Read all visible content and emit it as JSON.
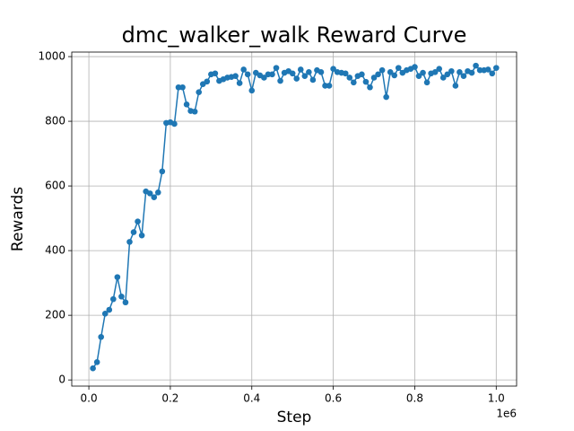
{
  "chart_data": {
    "type": "line",
    "title": "dmc_walker_walk Reward Curve",
    "x_label": "Step",
    "y_label": "Rewards",
    "x_offset_label": "1e6",
    "x": [
      10000,
      20000,
      30000,
      40000,
      50000,
      60000,
      70000,
      80000,
      90000,
      100000,
      110000,
      120000,
      130000,
      140000,
      150000,
      160000,
      170000,
      180000,
      190000,
      200000,
      210000,
      220000,
      230000,
      240000,
      250000,
      260000,
      270000,
      280000,
      290000,
      300000,
      310000,
      320000,
      330000,
      340000,
      350000,
      360000,
      370000,
      380000,
      390000,
      400000,
      410000,
      420000,
      430000,
      440000,
      450000,
      460000,
      470000,
      480000,
      490000,
      500000,
      510000,
      520000,
      530000,
      540000,
      550000,
      560000,
      570000,
      580000,
      590000,
      600000,
      610000,
      620000,
      630000,
      640000,
      650000,
      660000,
      670000,
      680000,
      690000,
      700000,
      710000,
      720000,
      730000,
      740000,
      750000,
      760000,
      770000,
      780000,
      790000,
      800000,
      810000,
      820000,
      830000,
      840000,
      850000,
      860000,
      870000,
      880000,
      890000,
      900000,
      910000,
      920000,
      930000,
      940000,
      950000,
      960000,
      970000,
      980000,
      990000,
      1000000
    ],
    "series": [
      {
        "name": "Rewards",
        "color": "#1f77b4",
        "values": [
          36,
          55,
          133,
          205,
          217,
          250,
          318,
          258,
          240,
          427,
          457,
          490,
          447,
          583,
          577,
          565,
          580,
          645,
          795,
          797,
          792,
          905,
          905,
          852,
          832,
          830,
          890,
          915,
          923,
          945,
          948,
          925,
          930,
          935,
          937,
          940,
          918,
          960,
          945,
          895,
          950,
          942,
          935,
          945,
          945,
          965,
          925,
          950,
          955,
          948,
          932,
          960,
          940,
          952,
          928,
          958,
          952,
          910,
          910,
          962,
          952,
          950,
          948,
          935,
          920,
          940,
          945,
          922,
          905,
          935,
          945,
          958,
          875,
          952,
          942,
          965,
          950,
          958,
          962,
          968,
          940,
          950,
          920,
          948,
          952,
          962,
          935,
          945,
          955,
          910,
          952,
          940,
          955,
          950,
          972,
          958,
          958,
          960,
          948,
          965
        ]
      }
    ],
    "xlim": [
      -42000,
      1050000
    ],
    "xticks": [
      {
        "value": 0,
        "label": "0.0"
      },
      {
        "value": 200000,
        "label": "0.2"
      },
      {
        "value": 400000,
        "label": "0.4"
      },
      {
        "value": 600000,
        "label": "0.6"
      },
      {
        "value": 800000,
        "label": "0.8"
      },
      {
        "value": 1000000,
        "label": "1.0"
      }
    ],
    "ylim": [
      -19,
      1014
    ],
    "yticks": [
      0,
      200,
      400,
      600,
      800,
      1000
    ],
    "grid": true
  }
}
